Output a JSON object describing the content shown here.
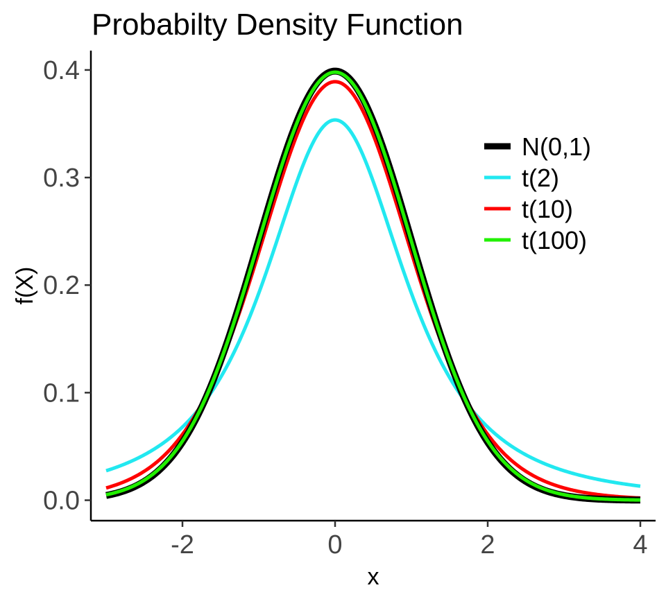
{
  "chart_data": {
    "type": "line",
    "title": "Probabilty Density Function",
    "xlabel": "x",
    "ylabel": "f(X)",
    "xlim": [
      -3.2,
      4.2
    ],
    "ylim": [
      -0.019,
      0.418
    ],
    "x_ticks": [
      -2,
      0,
      2,
      4
    ],
    "x_tick_labels": [
      "-2",
      "0",
      "2",
      "4"
    ],
    "y_ticks": [
      0.0,
      0.1,
      0.2,
      0.3,
      0.4
    ],
    "y_tick_labels": [
      "0.0",
      "0.1",
      "0.2",
      "0.3",
      "0.4"
    ],
    "grid": false,
    "legend_position": "top-right",
    "x_range": [
      -3,
      4
    ],
    "series": [
      {
        "name": "N(0,1)",
        "distribution": "normal",
        "df": null,
        "color": "#000000"
      },
      {
        "name": "t(2)",
        "distribution": "t",
        "df": 2,
        "color": "#22E8F0"
      },
      {
        "name": "t(10)",
        "distribution": "t",
        "df": 10,
        "color": "#FF0000"
      },
      {
        "name": "t(100)",
        "distribution": "t",
        "df": 100,
        "color": "#22F000"
      }
    ],
    "key_points": [
      {
        "series": "N(0,1)",
        "x": 0,
        "y": 0.399
      },
      {
        "series": "t(2)",
        "x": 0,
        "y": 0.354
      },
      {
        "series": "t(10)",
        "x": 0,
        "y": 0.389
      },
      {
        "series": "t(100)",
        "x": 0,
        "y": 0.398
      },
      {
        "series": "t(2)",
        "x": -3,
        "y": 0.027
      },
      {
        "series": "t(2)",
        "x": 4,
        "y": 0.013
      }
    ]
  }
}
